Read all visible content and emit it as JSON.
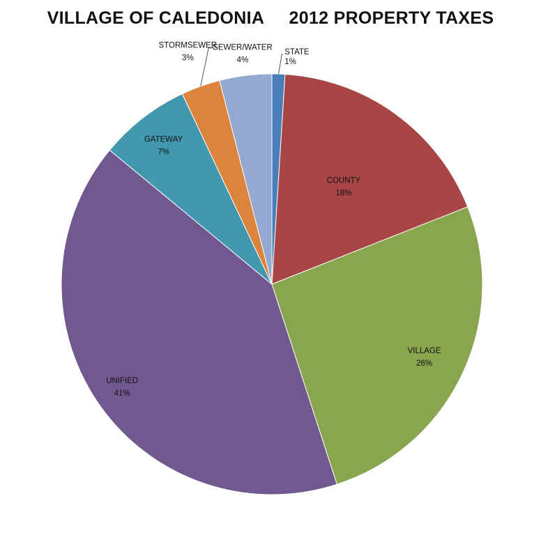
{
  "chart_data": {
    "type": "pie",
    "title_left": "VILLAGE OF CALEDONIA",
    "title_right": "2012 PROPERTY TAXES",
    "start": "top",
    "direction": "clockwise",
    "slices": [
      {
        "name": "STATE",
        "value": 1,
        "label": "1%",
        "color": "#4a7ebb"
      },
      {
        "name": "COUNTY",
        "value": 18,
        "label": "18%",
        "color": "#a84646"
      },
      {
        "name": "VILLAGE",
        "value": 26,
        "label": "26%",
        "color": "#89a54e"
      },
      {
        "name": "UNIFIED",
        "value": 41,
        "label": "41%",
        "color": "#71588f"
      },
      {
        "name": "GATEWAY",
        "value": 7,
        "label": "7%",
        "color": "#4198af"
      },
      {
        "name": "STORMSEWER",
        "value": 3,
        "label": "3%",
        "color": "#db843d"
      },
      {
        "name": "SEWER/WATER",
        "value": 4,
        "label": "4%",
        "color": "#93a9cf"
      }
    ]
  }
}
